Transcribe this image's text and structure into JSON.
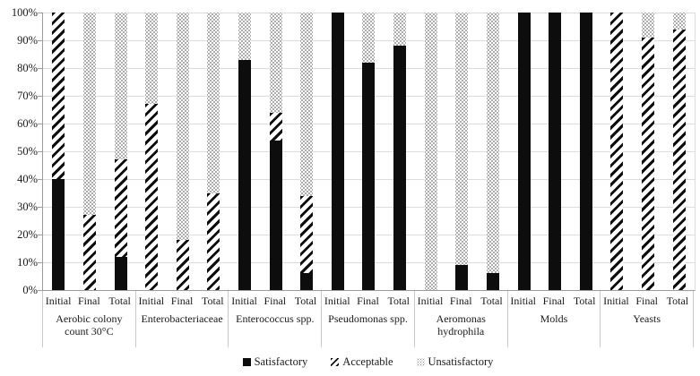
{
  "figure": {
    "background": "#ffffff",
    "text_color": "#1a1a1a",
    "gridline_color": "#dcdcdc",
    "axis_color": "#9c9c9c",
    "bar_color_satisfactory": "#0d0d0d"
  },
  "chart_data": {
    "type": "bar",
    "stacked": true,
    "orientation": "vertical",
    "grid": "horizontal",
    "ylim": [
      0,
      100
    ],
    "yticks": [
      "0%",
      "10%",
      "20%",
      "30%",
      "40%",
      "50%",
      "60%",
      "70%",
      "80%",
      "90%",
      "100%"
    ],
    "bar_labels": [
      "Initial",
      "Final",
      "Total"
    ],
    "series_order": [
      "satisfactory",
      "acceptable",
      "unsatisfactory"
    ],
    "legend_position": "bottom",
    "legend": [
      {
        "key": "satisfactory",
        "label": "Satisfactory",
        "pattern": "solid-black"
      },
      {
        "key": "acceptable",
        "label": "Acceptable",
        "pattern": "diagonal-hatch"
      },
      {
        "key": "unsatisfactory",
        "label": "Unsatisfactory",
        "pattern": "dotted"
      }
    ],
    "groups": [
      {
        "label": "Aerobic colony count 30°C",
        "bars": [
          {
            "label": "Initial",
            "satisfactory": 40,
            "acceptable": 60,
            "unsatisfactory": 0
          },
          {
            "label": "Final",
            "satisfactory": 0,
            "acceptable": 27,
            "unsatisfactory": 73
          },
          {
            "label": "Total",
            "satisfactory": 12,
            "acceptable": 35,
            "unsatisfactory": 53
          }
        ]
      },
      {
        "label": "Enterobacteriaceae",
        "bars": [
          {
            "label": "Initial",
            "satisfactory": 0,
            "acceptable": 67,
            "unsatisfactory": 33
          },
          {
            "label": "Final",
            "satisfactory": 0,
            "acceptable": 18,
            "unsatisfactory": 82
          },
          {
            "label": "Total",
            "satisfactory": 0,
            "acceptable": 35,
            "unsatisfactory": 65
          }
        ]
      },
      {
        "label": "Enterococcus spp.",
        "bars": [
          {
            "label": "Initial",
            "satisfactory": 83,
            "acceptable": 0,
            "unsatisfactory": 17
          },
          {
            "label": "Final",
            "satisfactory": 54,
            "acceptable": 10,
            "unsatisfactory": 36
          },
          {
            "label": "Total",
            "satisfactory": 6,
            "acceptable": 28,
            "unsatisfactory": 66
          }
        ]
      },
      {
        "label": "Pseudomonas spp.",
        "bars": [
          {
            "label": "Initial",
            "satisfactory": 100,
            "acceptable": 0,
            "unsatisfactory": 0
          },
          {
            "label": "Final",
            "satisfactory": 82,
            "acceptable": 0,
            "unsatisfactory": 18
          },
          {
            "label": "Total",
            "satisfactory": 88,
            "acceptable": 0,
            "unsatisfactory": 12
          }
        ]
      },
      {
        "label": "Aeromonas hydrophila",
        "bars": [
          {
            "label": "Initial",
            "satisfactory": 0,
            "acceptable": 0,
            "unsatisfactory": 100
          },
          {
            "label": "Final",
            "satisfactory": 9,
            "acceptable": 0,
            "unsatisfactory": 91
          },
          {
            "label": "Total",
            "satisfactory": 6,
            "acceptable": 0,
            "unsatisfactory": 94
          }
        ]
      },
      {
        "label": "Molds",
        "bars": [
          {
            "label": "Initial",
            "satisfactory": 100,
            "acceptable": 0,
            "unsatisfactory": 0
          },
          {
            "label": "Final",
            "satisfactory": 100,
            "acceptable": 0,
            "unsatisfactory": 0
          },
          {
            "label": "Total",
            "satisfactory": 100,
            "acceptable": 0,
            "unsatisfactory": 0
          }
        ]
      },
      {
        "label": "Yeasts",
        "bars": [
          {
            "label": "Initial",
            "satisfactory": 0,
            "acceptable": 100,
            "unsatisfactory": 0
          },
          {
            "label": "Final",
            "satisfactory": 0,
            "acceptable": 91,
            "unsatisfactory": 9
          },
          {
            "label": "Total",
            "satisfactory": 0,
            "acceptable": 94,
            "unsatisfactory": 6
          }
        ]
      }
    ]
  }
}
